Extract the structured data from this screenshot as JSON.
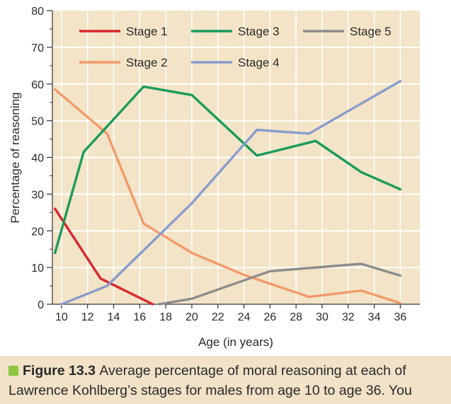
{
  "chart_data": {
    "type": "line",
    "xlabel": "Age (in years)",
    "ylabel": "Percentage of reasoning",
    "xlim": [
      9.3,
      37.5
    ],
    "ylim": [
      0,
      80
    ],
    "xticks": [
      10,
      12,
      14,
      16,
      18,
      20,
      22,
      24,
      26,
      28,
      30,
      32,
      34,
      36
    ],
    "yticks": [
      0,
      10,
      20,
      30,
      40,
      50,
      60,
      70,
      80
    ],
    "grid": true,
    "legend_position": "top",
    "series": [
      {
        "name": "Stage 1",
        "color": "#d9272e",
        "points": [
          [
            9.5,
            26
          ],
          [
            13,
            7
          ],
          [
            17,
            0
          ]
        ]
      },
      {
        "name": "Stage 2",
        "color": "#f29a6b",
        "points": [
          [
            9.5,
            58.5
          ],
          [
            13.5,
            46.5
          ],
          [
            16.3,
            22
          ],
          [
            20,
            14
          ],
          [
            24,
            8
          ],
          [
            29,
            2
          ],
          [
            33,
            3.7
          ],
          [
            36,
            0.3
          ]
        ]
      },
      {
        "name": "Stage 3",
        "color": "#1a9b5a",
        "points": [
          [
            9.5,
            14
          ],
          [
            11.7,
            41.5
          ],
          [
            16.3,
            59.3
          ],
          [
            20,
            57
          ],
          [
            25,
            40.5
          ],
          [
            29.5,
            44.5
          ],
          [
            33,
            36
          ],
          [
            36,
            31.3
          ]
        ]
      },
      {
        "name": "Stage 4",
        "color": "#8a9ccc",
        "points": [
          [
            10,
            0
          ],
          [
            13.5,
            5
          ],
          [
            20,
            27.5
          ],
          [
            25,
            47.5
          ],
          [
            29,
            46.5
          ],
          [
            36,
            60.8
          ]
        ]
      },
      {
        "name": "Stage 5",
        "color": "#8c8c8c",
        "points": [
          [
            17.5,
            0
          ],
          [
            20,
            1.5
          ],
          [
            26,
            9
          ],
          [
            33,
            11
          ],
          [
            36,
            7.8
          ]
        ]
      }
    ]
  },
  "caption": {
    "figure_label": "Figure 13.3",
    "line1": "Average percentage of moral reasoning at each of",
    "line2": "Lawrence Kohlberg’s stages for males from age 10 to age 36. You"
  },
  "colors": {
    "plot_background": "#f3e4c7",
    "grid": "#ffffff",
    "caption_background": "#f1e2c8",
    "caption_square": "#8dc63f"
  }
}
